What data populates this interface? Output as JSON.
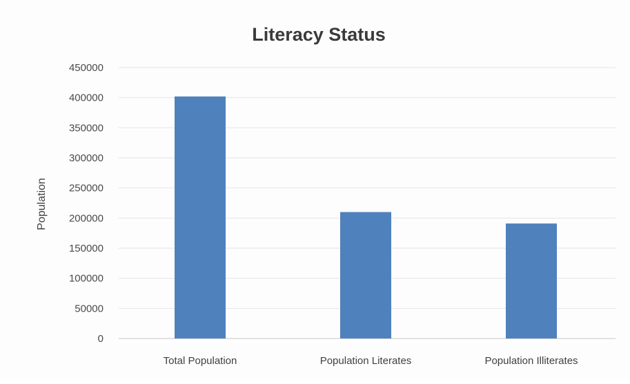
{
  "chart_data": {
    "type": "bar",
    "title": "Literacy Status",
    "ylabel": "Population",
    "xlabel": "",
    "categories": [
      "Total Population",
      "Population Literates",
      "Population Illiterates"
    ],
    "values": [
      402000,
      210000,
      191000
    ],
    "ylim": [
      0,
      450000
    ],
    "yticks": [
      0,
      50000,
      100000,
      150000,
      200000,
      250000,
      300000,
      350000,
      400000,
      450000
    ],
    "grid": true,
    "legend": "none",
    "bar_color": "#4f81bd"
  }
}
